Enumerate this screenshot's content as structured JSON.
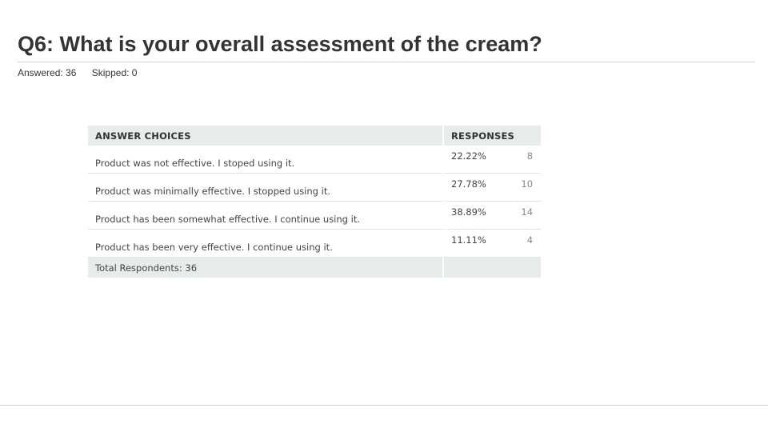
{
  "question": {
    "title": "Q6: What is your overall assessment of the cream?",
    "answered_label": "Answered:",
    "answered": "36",
    "skipped_label": "Skipped:",
    "skipped": "0"
  },
  "table": {
    "headers": {
      "choices": "ANSWER CHOICES",
      "responses": "RESPONSES"
    },
    "rows": [
      {
        "choice": "Product was not effective. I stoped using it.",
        "percent": "22.22%",
        "count": "8"
      },
      {
        "choice": "Product was minimally effective. I stopped using it.",
        "percent": "27.78%",
        "count": "10"
      },
      {
        "choice": "Product has been somewhat effective. I continue using it.",
        "percent": "38.89%",
        "count": "14"
      },
      {
        "choice": "Product has been very effective. I continue using it.",
        "percent": "11.11%",
        "count": "4"
      }
    ],
    "total": "Total Respondents: 36"
  }
}
